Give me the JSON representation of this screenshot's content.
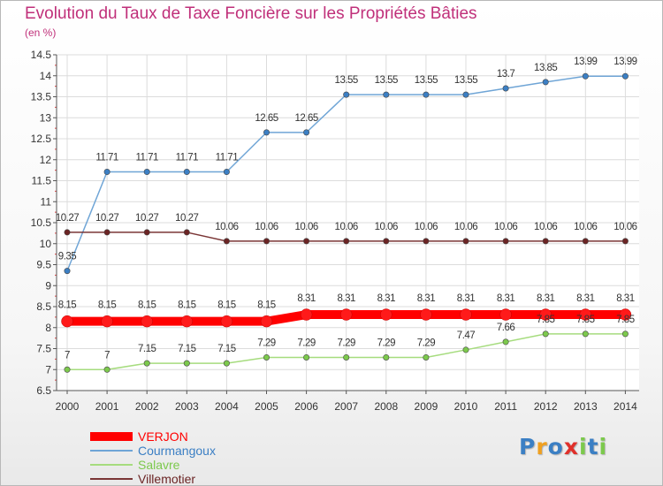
{
  "chart_data": {
    "type": "line",
    "title": "Evolution du Taux de Taxe Foncière sur les Propriétés Bâties",
    "unit_label": "(en %)",
    "x": [
      "2000",
      "2001",
      "2002",
      "2003",
      "2004",
      "2005",
      "2006",
      "2007",
      "2008",
      "2009",
      "2010",
      "2011",
      "2012",
      "2013",
      "2014"
    ],
    "ylim": [
      6.5,
      14.5
    ],
    "yticks": [
      "6.5",
      "7",
      "7.5",
      "8",
      "8.5",
      "9",
      "9.5",
      "10",
      "10.5",
      "11",
      "11.5",
      "12",
      "12.5",
      "13",
      "13.5",
      "14",
      "14.5"
    ],
    "grid": true,
    "legend_position": "bottom-left",
    "series": [
      {
        "name": "Courmangoux",
        "color": "#6fa5d6",
        "marker_color": "#3b7fc4",
        "values": [
          9.35,
          11.71,
          11.71,
          11.71,
          11.71,
          12.65,
          12.65,
          13.55,
          13.55,
          13.55,
          13.55,
          13.7,
          13.85,
          13.99,
          13.99
        ],
        "labels": [
          "9.35",
          "11.71",
          "11.71",
          "11.71",
          "11.71",
          "12.65",
          "12.65",
          "13.55",
          "13.55",
          "13.55",
          "13.55",
          "13.7",
          "13.85",
          "13.99",
          "13.99"
        ]
      },
      {
        "name": "Villemotier",
        "color": "#7a3535",
        "marker_color": "#6b2424",
        "values": [
          10.27,
          10.27,
          10.27,
          10.27,
          10.06,
          10.06,
          10.06,
          10.06,
          10.06,
          10.06,
          10.06,
          10.06,
          10.06,
          10.06,
          10.06
        ],
        "labels": [
          "10.27",
          "10.27",
          "10.27",
          "10.27",
          "10.06",
          "10.06",
          "10.06",
          "10.06",
          "10.06",
          "10.06",
          "10.06",
          "10.06",
          "10.06",
          "10.06",
          "10.06"
        ]
      },
      {
        "name": "VERJON",
        "color": "#ff0000",
        "marker_color": "#ff1a1a",
        "values": [
          8.15,
          8.15,
          8.15,
          8.15,
          8.15,
          8.15,
          8.31,
          8.31,
          8.31,
          8.31,
          8.31,
          8.31,
          8.31,
          8.31,
          8.31
        ],
        "labels": [
          "8.15",
          "8.15",
          "8.15",
          "8.15",
          "8.15",
          "8.15",
          "8.31",
          "8.31",
          "8.31",
          "8.31",
          "8.31",
          "8.31",
          "8.31",
          "8.31",
          "8.31"
        ]
      },
      {
        "name": "Salavre",
        "color": "#a6dc7e",
        "marker_color": "#7cc94c",
        "values": [
          7,
          7,
          7.15,
          7.15,
          7.15,
          7.29,
          7.29,
          7.29,
          7.29,
          7.29,
          7.47,
          7.66,
          7.85,
          7.85,
          7.85
        ],
        "labels": [
          "7",
          "7",
          "7.15",
          "7.15",
          "7.15",
          "7.29",
          "7.29",
          "7.29",
          "7.29",
          "7.29",
          "7.47",
          "7.66",
          "7.85",
          "7.85",
          "7.85"
        ]
      }
    ],
    "legend": [
      {
        "name": "VERJON",
        "color": "#ff0000",
        "text_color": "#ff0000"
      },
      {
        "name": "Courmangoux",
        "color": "#6fa5d6",
        "text_color": "#3b7fc4"
      },
      {
        "name": "Salavre",
        "color": "#a6dc7e",
        "text_color": "#7cc94c"
      },
      {
        "name": "Villemotier",
        "color": "#7a3535",
        "text_color": "#6b2424"
      }
    ]
  },
  "branding": {
    "logo_text": [
      "P",
      "r",
      "o",
      "x",
      "i",
      "t",
      "i"
    ],
    "logo_colors": [
      "#3b7fc4",
      "#f0a020",
      "#3b7fc4",
      "#e0302a",
      "#7cc94c",
      "#3b7fc4",
      "#7cc94c"
    ]
  }
}
